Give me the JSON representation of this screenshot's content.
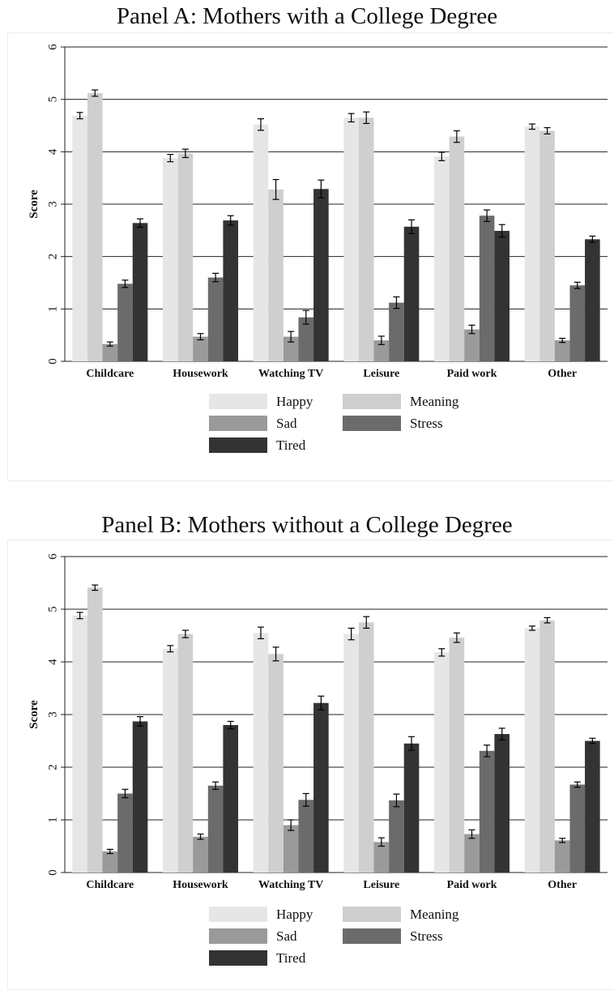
{
  "colors": {
    "Happy": "#e6e6e6",
    "Meaning": "#cfcfcf",
    "Sad": "#9a9a9a",
    "Stress": "#6b6b6b",
    "Tired": "#333333"
  },
  "chart_data": [
    {
      "type": "bar",
      "title": "Panel A: Mothers with a College Degree",
      "ylabel": "Score",
      "xlabel": "",
      "ylim": [
        0,
        6
      ],
      "yticks": [
        "0",
        "1",
        "2",
        "3",
        "4",
        "5",
        "6"
      ],
      "grid": true,
      "legend_position": "bottom",
      "categories": [
        "Childcare",
        "Housework",
        "Watching TV",
        "Leisure",
        "Paid work",
        "Other"
      ],
      "series": [
        {
          "name": "Happy",
          "values": [
            4.69,
            3.88,
            4.52,
            4.65,
            3.91,
            4.48
          ],
          "err": [
            0.06,
            0.07,
            0.11,
            0.08,
            0.08,
            0.05
          ]
        },
        {
          "name": "Meaning",
          "values": [
            5.12,
            3.97,
            3.28,
            4.65,
            4.29,
            4.4
          ],
          "err": [
            0.06,
            0.08,
            0.19,
            0.11,
            0.11,
            0.06
          ]
        },
        {
          "name": "Sad",
          "values": [
            0.33,
            0.47,
            0.47,
            0.4,
            0.61,
            0.4
          ],
          "err": [
            0.04,
            0.06,
            0.1,
            0.08,
            0.08,
            0.04
          ]
        },
        {
          "name": "Stress",
          "values": [
            1.48,
            1.6,
            0.84,
            1.12,
            2.78,
            1.45
          ],
          "err": [
            0.07,
            0.08,
            0.13,
            0.11,
            0.11,
            0.06
          ]
        },
        {
          "name": "Tired",
          "values": [
            2.64,
            2.69,
            3.29,
            2.57,
            2.49,
            2.33
          ],
          "err": [
            0.08,
            0.09,
            0.17,
            0.13,
            0.12,
            0.06
          ]
        }
      ]
    },
    {
      "type": "bar",
      "title": "Panel B: Mothers without a College Degree",
      "ylabel": "Score",
      "xlabel": "",
      "ylim": [
        0,
        6
      ],
      "yticks": [
        "0",
        "1",
        "2",
        "3",
        "4",
        "5",
        "6"
      ],
      "grid": true,
      "legend_position": "bottom",
      "categories": [
        "Childcare",
        "Housework",
        "Watching TV",
        "Leisure",
        "Paid work",
        "Other"
      ],
      "series": [
        {
          "name": "Happy",
          "values": [
            4.88,
            4.25,
            4.55,
            4.53,
            4.18,
            4.64
          ],
          "err": [
            0.06,
            0.06,
            0.11,
            0.11,
            0.07,
            0.04
          ]
        },
        {
          "name": "Meaning",
          "values": [
            5.41,
            4.53,
            4.15,
            4.75,
            4.46,
            4.79
          ],
          "err": [
            0.05,
            0.07,
            0.13,
            0.11,
            0.09,
            0.05
          ]
        },
        {
          "name": "Sad",
          "values": [
            0.4,
            0.68,
            0.9,
            0.58,
            0.73,
            0.61
          ],
          "err": [
            0.04,
            0.05,
            0.1,
            0.08,
            0.08,
            0.04
          ]
        },
        {
          "name": "Stress",
          "values": [
            1.5,
            1.65,
            1.38,
            1.37,
            2.31,
            1.67
          ],
          "err": [
            0.08,
            0.07,
            0.12,
            0.12,
            0.11,
            0.05
          ]
        },
        {
          "name": "Tired",
          "values": [
            2.87,
            2.8,
            3.22,
            2.45,
            2.63,
            2.5
          ],
          "err": [
            0.09,
            0.07,
            0.13,
            0.13,
            0.11,
            0.05
          ]
        }
      ]
    }
  ]
}
